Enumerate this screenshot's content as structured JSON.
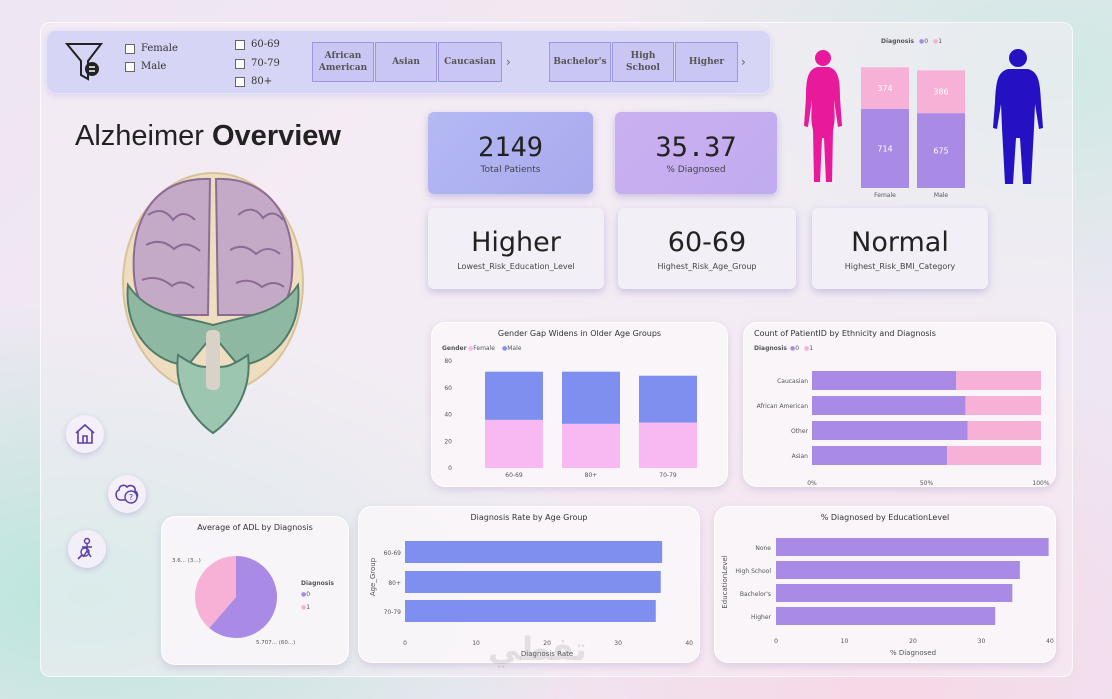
{
  "slicers": {
    "gender": [
      "Female",
      "Male"
    ],
    "age": [
      "60-69",
      "70-79",
      "80+"
    ],
    "ethnicity": [
      "African American",
      "Asian",
      "Caucasian"
    ],
    "ethnicity_more": "›",
    "education": [
      "Bachelor's",
      "High School",
      "Higher"
    ],
    "education_more": "›"
  },
  "title": {
    "light": "Alzheimer",
    "bold": "Overview"
  },
  "kpis": {
    "total_patients": {
      "value": "2149",
      "label": "Total Patients"
    },
    "pct_diagnosed": {
      "value": "35.37",
      "label": "% Diagnosed"
    },
    "lowest_edu": {
      "value": "Higher",
      "label": "Lowest_Risk_Education_Level"
    },
    "highest_age": {
      "value": "60-69",
      "label": "Highest_Risk_Age_Group"
    },
    "highest_bmi": {
      "value": "Normal",
      "label": "Highest_Risk_BMI_Category"
    }
  },
  "colors": {
    "diag0": "#a98be6",
    "diag1": "#f7b1d6",
    "female": "#f8b8f2",
    "male": "#7f8ff0",
    "female_figure": "#e8199a",
    "male_figure": "#2411c2"
  },
  "chart_data": [
    {
      "type": "bar",
      "stacked": true,
      "legend_title": "Diagnosis",
      "legend": [
        "0",
        "1"
      ],
      "categories": [
        "Female",
        "Male"
      ],
      "series": [
        {
          "name": "0",
          "values": [
            714,
            675
          ]
        },
        {
          "name": "1",
          "values": [
            374,
            386
          ]
        }
      ]
    },
    {
      "type": "bar",
      "stacked": true,
      "title": "Gender Gap Widens in Older Age Groups",
      "legend_title": "Gender",
      "legend": [
        "Female",
        "Male"
      ],
      "categories": [
        "60-69",
        "80+",
        "70-79"
      ],
      "series": [
        {
          "name": "Female",
          "values": [
            36,
            33,
            34
          ]
        },
        {
          "name": "Male",
          "values": [
            36,
            39,
            35
          ]
        }
      ],
      "ylim": [
        0,
        80
      ],
      "yticks": [
        "0",
        "20",
        "40",
        "60",
        "80"
      ]
    },
    {
      "type": "bar",
      "orientation": "horizontal",
      "stacked_percent": true,
      "title": "Count of PatientID by Ethnicity and Diagnosis",
      "legend_title": "Diagnosis",
      "legend": [
        "0",
        "1"
      ],
      "categories": [
        "Caucasian",
        "African American",
        "Other",
        "Asian"
      ],
      "series": [
        {
          "name": "0",
          "values": [
            63,
            67,
            68,
            59
          ]
        },
        {
          "name": "1",
          "values": [
            37,
            33,
            32,
            41
          ]
        }
      ],
      "xticks": [
        "0%",
        "50%",
        "100%"
      ]
    },
    {
      "type": "pie",
      "title": "Average of ADL by Diagnosis",
      "legend_title": "Diagnosis",
      "legend": [
        "0",
        "1"
      ],
      "values": [
        5.707,
        3.6
      ],
      "labels": [
        "5.707... (60...)",
        "3.6... (3...)"
      ]
    },
    {
      "type": "bar",
      "orientation": "horizontal",
      "title": "Diagnosis Rate by Age Group",
      "categories": [
        "60-69",
        "80+",
        "70-79"
      ],
      "values": [
        36.2,
        36.0,
        35.3
      ],
      "xlabel": "Diagnosis Rate",
      "ylabel": "Age_Group",
      "xlim": [
        0,
        40
      ],
      "xticks": [
        "0",
        "10",
        "20",
        "30",
        "40"
      ]
    },
    {
      "type": "bar",
      "orientation": "horizontal",
      "title": "% Diagnosed by EducationLevel",
      "categories": [
        "None",
        "High School",
        "Bachelor's",
        "Higher"
      ],
      "values": [
        39.8,
        35.6,
        34.5,
        32.0
      ],
      "xlabel": "% Diagnosed",
      "ylabel": "EducationLevel",
      "xlim": [
        0,
        40
      ],
      "xticks": [
        "0",
        "10",
        "20",
        "30",
        "40"
      ]
    }
  ],
  "watermark": "تفطي"
}
